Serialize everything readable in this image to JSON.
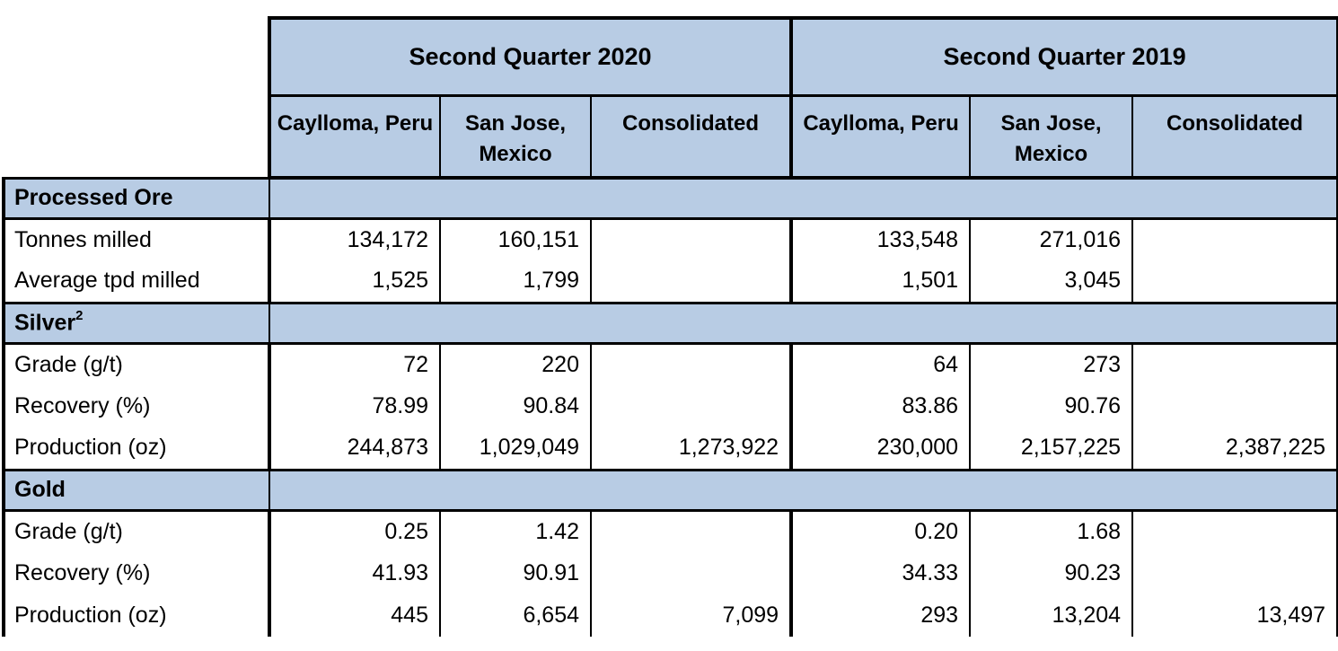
{
  "page": {
    "background": "#ffffff"
  },
  "table": {
    "header_fill": "#b8cce4",
    "border_color": "#000000",
    "quarter_headers": [
      "Second Quarter 2020",
      "Second Quarter 2019"
    ],
    "column_headers": [
      "Caylloma, Peru",
      "San Jose, Mexico",
      "Consolidated",
      "Caylloma, Peru",
      "San Jose, Mexico",
      "Consolidated"
    ],
    "sections": [
      {
        "label": "Processed Ore",
        "superscript": "",
        "rows": [
          {
            "label": "Tonnes milled",
            "values": [
              "134,172",
              "160,151",
              "",
              "133,548",
              "271,016",
              ""
            ]
          },
          {
            "label": "Average tpd milled",
            "values": [
              "1,525",
              "1,799",
              "",
              "1,501",
              "3,045",
              ""
            ]
          }
        ]
      },
      {
        "label": "Silver",
        "superscript": "2",
        "rows": [
          {
            "label": "Grade (g/t)",
            "values": [
              "72",
              "220",
              "",
              "64",
              "273",
              ""
            ]
          },
          {
            "label": "Recovery (%)",
            "values": [
              "78.99",
              "90.84",
              "",
              "83.86",
              "90.76",
              ""
            ]
          },
          {
            "label": "Production (oz)",
            "values": [
              "244,873",
              "1,029,049",
              "1,273,922",
              "230,000",
              "2,157,225",
              "2,387,225"
            ]
          }
        ]
      },
      {
        "label": "Gold",
        "superscript": "",
        "rows": [
          {
            "label": "Grade (g/t)",
            "values": [
              "0.25",
              "1.42",
              "",
              "0.20",
              "1.68",
              ""
            ]
          },
          {
            "label": "Recovery (%)",
            "values": [
              "41.93",
              "90.91",
              "",
              "34.33",
              "90.23",
              ""
            ]
          },
          {
            "label": "Production (oz)",
            "values": [
              "445",
              "6,654",
              "7,099",
              "293",
              "13,204",
              "13,497"
            ]
          }
        ]
      }
    ]
  }
}
